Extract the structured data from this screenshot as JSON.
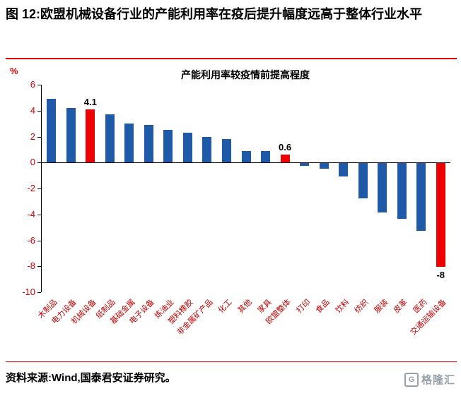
{
  "header": {
    "figure_title": "图 12:欧盟机械设备行业的产能利用率在疫后提升幅度远高于整体行业水平"
  },
  "chart_data": {
    "type": "bar",
    "title": "产能利用率较疫情前提高程度",
    "ylabel": "%",
    "ylim": [
      -10,
      6
    ],
    "yticks": [
      6,
      4,
      2,
      0,
      -2,
      -4,
      -6,
      -8,
      -10
    ],
    "grid": false,
    "legend": "none",
    "categories": [
      "木制品",
      "电力设备",
      "机械设备",
      "纸制品",
      "基础金属",
      "电子设备",
      "炼油业",
      "塑料橡胶",
      "非金属矿产品",
      "化工",
      "其他",
      "家具",
      "欧盟整体",
      "打印",
      "食品",
      "饮料",
      "纺织",
      "服装",
      "皮革",
      "医药",
      "交通运输设备"
    ],
    "values": [
      4.9,
      4.2,
      4.1,
      3.7,
      3.0,
      2.9,
      2.5,
      2.3,
      2.0,
      1.8,
      0.9,
      0.9,
      0.6,
      -0.2,
      -0.4,
      -1.0,
      -2.7,
      -3.8,
      -4.3,
      -5.2,
      -8.0
    ],
    "highlight_indices": [
      2,
      12,
      20
    ],
    "data_labels": [
      {
        "index": 2,
        "text": "4.1"
      },
      {
        "index": 12,
        "text": "0.6"
      },
      {
        "index": 20,
        "text": "-8"
      }
    ],
    "colors": {
      "bar": "#1e5aa8",
      "highlight": "#ee0000",
      "axis_text": "#d40000",
      "axis_line": "#000000",
      "title_rule": "#e60000"
    }
  },
  "footer": {
    "source": "资料来源:Wind,国泰君安证券研究。",
    "logo_text": "格隆汇",
    "logo_mark": "G"
  }
}
